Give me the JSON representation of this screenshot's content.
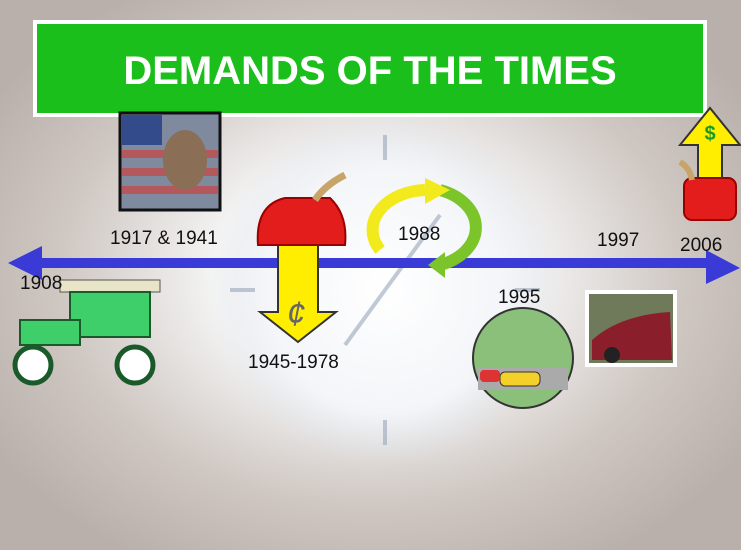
{
  "header": {
    "title": "DEMANDS OF THE TIMES"
  },
  "timeline": {
    "labels": [
      "1908",
      "1917 & 1941",
      "1945-1978",
      "1988",
      "1995",
      "1997",
      "2006"
    ]
  },
  "icons": {
    "cent": "¢",
    "dollar": "$"
  }
}
